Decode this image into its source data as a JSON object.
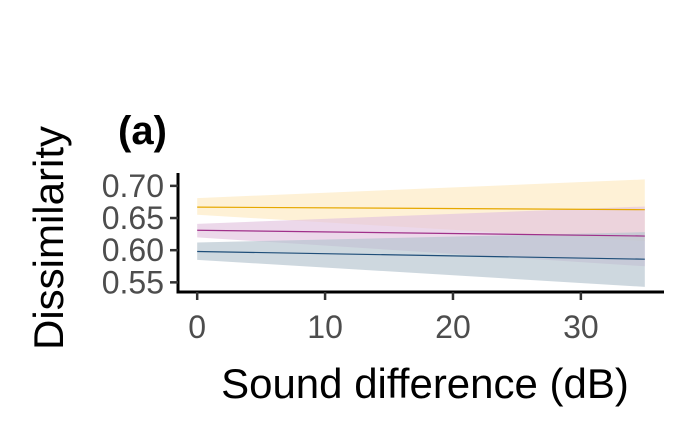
{
  "panel_tag": "(a)",
  "chart_data": {
    "type": "line",
    "title": "",
    "xlabel": "Sound difference (dB)",
    "ylabel": "Dissimilarity",
    "xlim": [
      -1.5,
      36.5
    ],
    "ylim": [
      0.535,
      0.72
    ],
    "xticks": [
      0,
      10,
      20,
      30
    ],
    "yticks": [
      0.55,
      0.6,
      0.65,
      0.7
    ],
    "ytick_labels": [
      "0.55",
      "0.60",
      "0.65",
      "0.70"
    ],
    "xtick_labels": [
      "0",
      "10",
      "20",
      "30"
    ],
    "grid": false,
    "legend": "none",
    "series": [
      {
        "color": "#E6A800",
        "band_color": "#FDE9C0",
        "x": [
          0,
          35
        ],
        "y": [
          0.667,
          0.663
        ],
        "lower": [
          0.655,
          0.614
        ],
        "upper": [
          0.681,
          0.71
        ]
      },
      {
        "color": "#A0308A",
        "band_color": "#E2C3DE",
        "x": [
          0,
          35
        ],
        "y": [
          0.631,
          0.622
        ],
        "lower": [
          0.62,
          0.575
        ],
        "upper": [
          0.641,
          0.668
        ]
      },
      {
        "color": "#1F4E79",
        "band_color": "#B3C3CE",
        "x": [
          0,
          35
        ],
        "y": [
          0.598,
          0.586
        ],
        "lower": [
          0.585,
          0.543
        ],
        "upper": [
          0.612,
          0.628
        ]
      }
    ]
  }
}
